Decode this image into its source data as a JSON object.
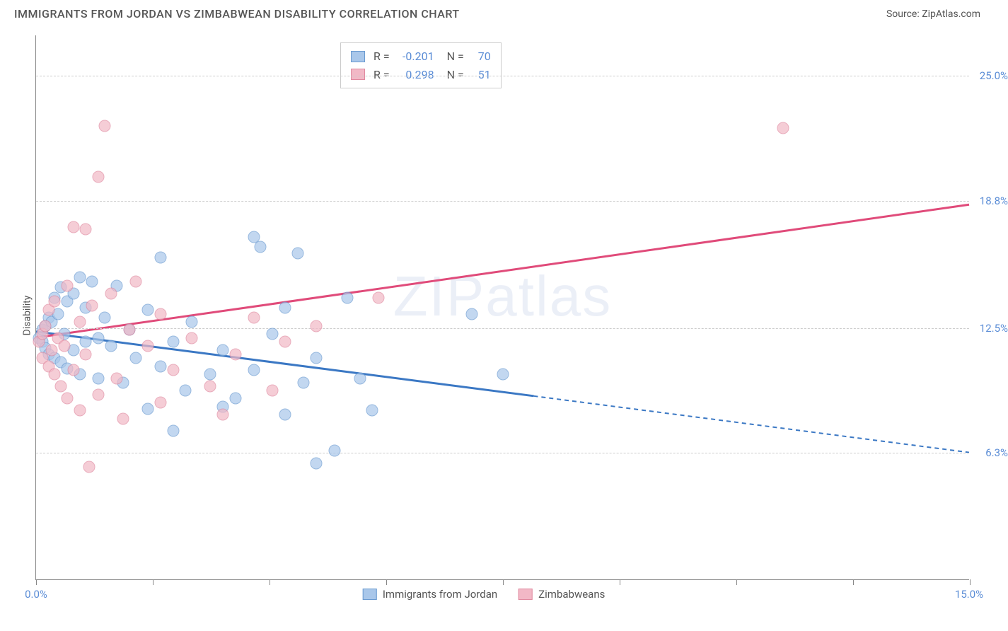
{
  "title": "IMMIGRANTS FROM JORDAN VS ZIMBABWEAN DISABILITY CORRELATION CHART",
  "source": "Source: ZipAtlas.com",
  "watermark": "ZIPatlas",
  "ylabel": "Disability",
  "chart": {
    "type": "scatter",
    "xlim": [
      0,
      15
    ],
    "ylim": [
      0,
      27
    ],
    "yticks": [
      {
        "v": 6.3,
        "label": "6.3%"
      },
      {
        "v": 12.5,
        "label": "12.5%"
      },
      {
        "v": 18.8,
        "label": "18.8%"
      },
      {
        "v": 25.0,
        "label": "25.0%"
      }
    ],
    "xticks": [
      0,
      1.88,
      3.75,
      5.63,
      7.5,
      9.38,
      11.25,
      13.13,
      15
    ],
    "xtick_labels": {
      "start": "0.0%",
      "end": "15.0%"
    },
    "series": [
      {
        "name": "Immigrants from Jordan",
        "color_fill": "#a9c7ea",
        "color_stroke": "#6b9bd1",
        "R": "-0.201",
        "N": "70",
        "trend": {
          "x1": 0,
          "y1": 12.3,
          "x2": 15,
          "y2": 6.3,
          "solid_until_x": 8,
          "color": "#3b78c4"
        },
        "points": [
          [
            0.05,
            12.0
          ],
          [
            0.1,
            12.4
          ],
          [
            0.1,
            11.8
          ],
          [
            0.15,
            12.6
          ],
          [
            0.15,
            11.5
          ],
          [
            0.2,
            13.0
          ],
          [
            0.2,
            11.2
          ],
          [
            0.25,
            12.8
          ],
          [
            0.3,
            14.0
          ],
          [
            0.3,
            11.0
          ],
          [
            0.35,
            13.2
          ],
          [
            0.4,
            14.5
          ],
          [
            0.4,
            10.8
          ],
          [
            0.45,
            12.2
          ],
          [
            0.5,
            13.8
          ],
          [
            0.5,
            10.5
          ],
          [
            0.6,
            14.2
          ],
          [
            0.6,
            11.4
          ],
          [
            0.7,
            15.0
          ],
          [
            0.7,
            10.2
          ],
          [
            0.8,
            13.5
          ],
          [
            0.8,
            11.8
          ],
          [
            0.9,
            14.8
          ],
          [
            1.0,
            12.0
          ],
          [
            1.0,
            10.0
          ],
          [
            1.1,
            13.0
          ],
          [
            1.2,
            11.6
          ],
          [
            1.3,
            14.6
          ],
          [
            1.4,
            9.8
          ],
          [
            1.5,
            12.4
          ],
          [
            1.6,
            11.0
          ],
          [
            1.8,
            13.4
          ],
          [
            1.8,
            8.5
          ],
          [
            2.0,
            16.0
          ],
          [
            2.0,
            10.6
          ],
          [
            2.2,
            11.8
          ],
          [
            2.2,
            7.4
          ],
          [
            2.4,
            9.4
          ],
          [
            2.5,
            12.8
          ],
          [
            2.8,
            10.2
          ],
          [
            3.0,
            8.6
          ],
          [
            3.0,
            11.4
          ],
          [
            3.2,
            9.0
          ],
          [
            3.5,
            17.0
          ],
          [
            3.5,
            10.4
          ],
          [
            3.6,
            16.5
          ],
          [
            3.8,
            12.2
          ],
          [
            4.0,
            8.2
          ],
          [
            4.0,
            13.5
          ],
          [
            4.2,
            16.2
          ],
          [
            4.3,
            9.8
          ],
          [
            4.5,
            5.8
          ],
          [
            4.5,
            11.0
          ],
          [
            4.8,
            6.4
          ],
          [
            5.0,
            14.0
          ],
          [
            5.2,
            10.0
          ],
          [
            5.4,
            8.4
          ],
          [
            7.0,
            13.2
          ],
          [
            7.5,
            10.2
          ]
        ]
      },
      {
        "name": "Zimbabweans",
        "color_fill": "#f2b8c6",
        "color_stroke": "#e08aa0",
        "R": "0.298",
        "N": "51",
        "trend": {
          "x1": 0,
          "y1": 12.0,
          "x2": 15,
          "y2": 18.6,
          "solid_until_x": 15,
          "color": "#e04b7a"
        },
        "points": [
          [
            0.05,
            11.8
          ],
          [
            0.1,
            12.2
          ],
          [
            0.1,
            11.0
          ],
          [
            0.15,
            12.6
          ],
          [
            0.2,
            13.4
          ],
          [
            0.2,
            10.6
          ],
          [
            0.25,
            11.4
          ],
          [
            0.3,
            13.8
          ],
          [
            0.3,
            10.2
          ],
          [
            0.35,
            12.0
          ],
          [
            0.4,
            9.6
          ],
          [
            0.45,
            11.6
          ],
          [
            0.5,
            14.6
          ],
          [
            0.5,
            9.0
          ],
          [
            0.6,
            17.5
          ],
          [
            0.6,
            10.4
          ],
          [
            0.7,
            12.8
          ],
          [
            0.7,
            8.4
          ],
          [
            0.8,
            17.4
          ],
          [
            0.8,
            11.2
          ],
          [
            0.85,
            5.6
          ],
          [
            0.9,
            13.6
          ],
          [
            1.0,
            20.0
          ],
          [
            1.0,
            9.2
          ],
          [
            1.1,
            22.5
          ],
          [
            1.2,
            14.2
          ],
          [
            1.3,
            10.0
          ],
          [
            1.4,
            8.0
          ],
          [
            1.5,
            12.4
          ],
          [
            1.6,
            14.8
          ],
          [
            1.8,
            11.6
          ],
          [
            2.0,
            13.2
          ],
          [
            2.0,
            8.8
          ],
          [
            2.2,
            10.4
          ],
          [
            2.5,
            12.0
          ],
          [
            2.8,
            9.6
          ],
          [
            3.0,
            8.2
          ],
          [
            3.2,
            11.2
          ],
          [
            3.5,
            13.0
          ],
          [
            3.8,
            9.4
          ],
          [
            4.0,
            11.8
          ],
          [
            4.5,
            12.6
          ],
          [
            5.5,
            14.0
          ],
          [
            12.0,
            22.4
          ]
        ]
      }
    ]
  }
}
